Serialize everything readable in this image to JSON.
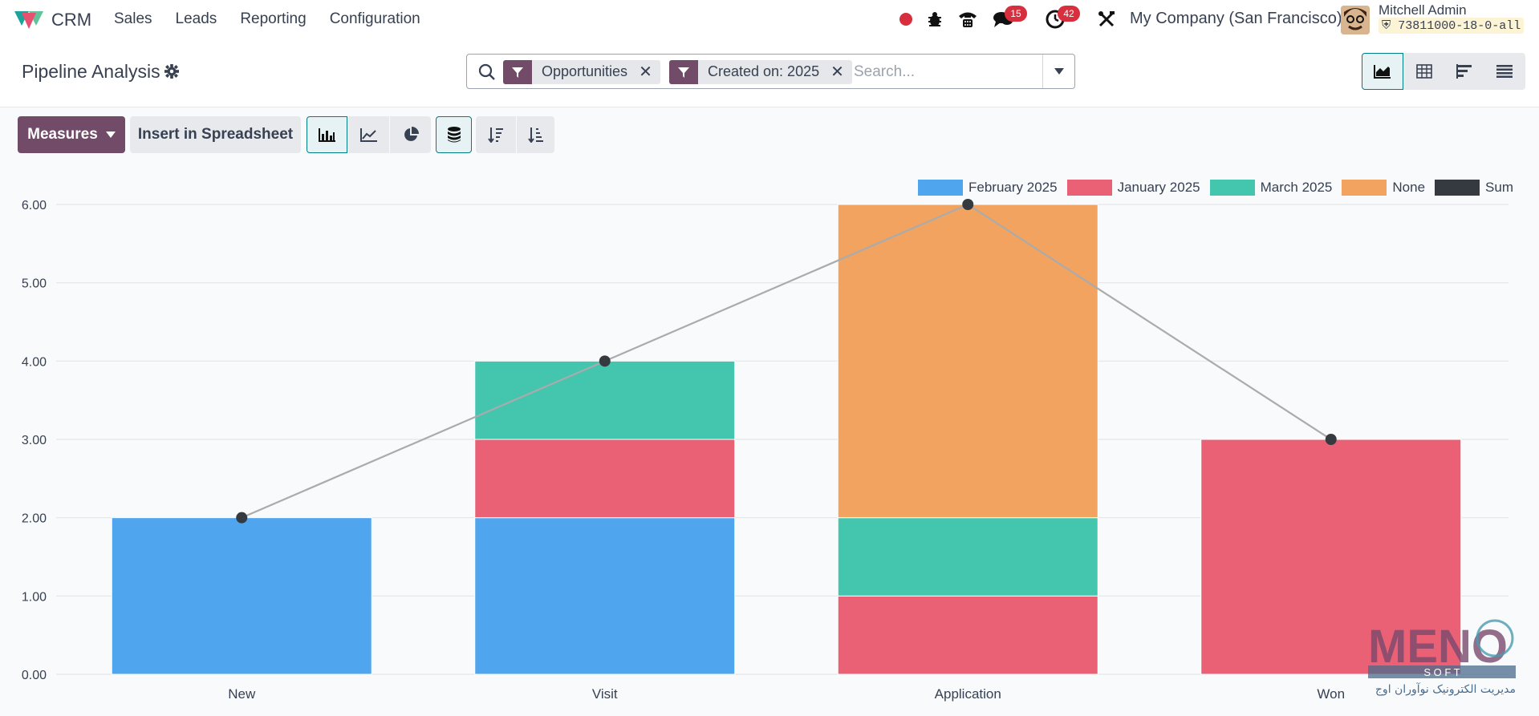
{
  "topbar": {
    "app_name": "CRM",
    "menu": [
      "Sales",
      "Leads",
      "Reporting",
      "Configuration"
    ],
    "messages_badge": "15",
    "activities_badge": "42",
    "company": "My Company (San Francisco)",
    "user_name": "Mitchell Admin",
    "db_name": "73811000-18-0-all"
  },
  "control": {
    "page_title": "Pipeline Analysis",
    "facets": [
      {
        "label": "Opportunities"
      },
      {
        "label": "Created on: 2025"
      }
    ],
    "search_placeholder": "Search..."
  },
  "toolbar": {
    "measures_label": "Measures",
    "insert_label": "Insert in Spreadsheet"
  },
  "colors": {
    "brand": "#714b67",
    "accent": "#017e84",
    "february": "#4fa6ef",
    "january": "#ea6176",
    "march": "#43c5ae",
    "none": "#f2a35f",
    "sum": "#343a40"
  },
  "chart_data": {
    "type": "bar",
    "stacked": true,
    "categories": [
      "New",
      "Visit",
      "Application",
      "Won"
    ],
    "series": [
      {
        "name": "February 2025",
        "values": [
          2,
          2,
          0,
          0
        ]
      },
      {
        "name": "January 2025",
        "values": [
          0,
          1,
          1,
          3
        ]
      },
      {
        "name": "March 2025",
        "values": [
          0,
          1,
          1,
          0
        ]
      },
      {
        "name": "None",
        "values": [
          0,
          0,
          4,
          0
        ]
      }
    ],
    "line_series": {
      "name": "Sum",
      "values": [
        2,
        4,
        6,
        3
      ]
    },
    "yticks": [
      "0.00",
      "1.00",
      "2.00",
      "3.00",
      "4.00",
      "5.00",
      "6.00"
    ],
    "ylim": [
      0,
      6
    ],
    "grid": true,
    "legend_position": "top-right"
  },
  "watermark": {
    "brand": "MENO",
    "subtitle": "S O F T",
    "tagline": "مدیریت الکترونیک نوآوران اوج"
  }
}
